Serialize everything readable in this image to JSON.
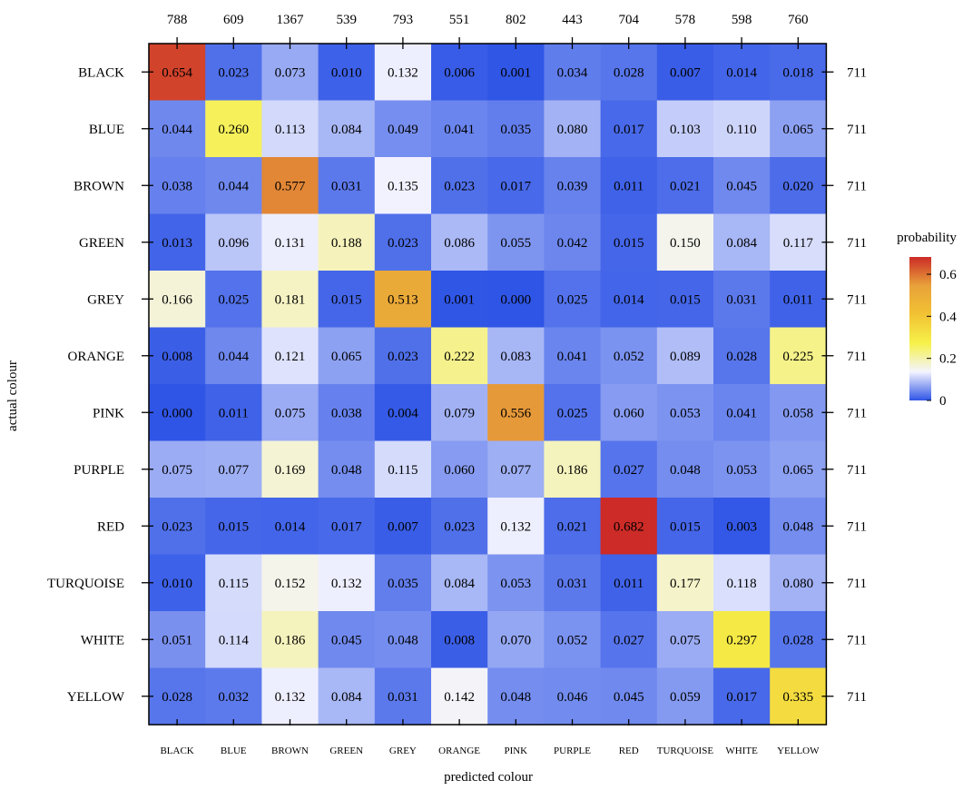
{
  "chart_data": {
    "type": "heatmap",
    "xlabel": "predicted colour",
    "ylabel": "actual colour",
    "x_categories": [
      "BLACK",
      "BLUE",
      "BROWN",
      "GREEN",
      "GREY",
      "ORANGE",
      "PINK",
      "PURPLE",
      "RED",
      "TURQUOISE",
      "WHITE",
      "YELLOW"
    ],
    "y_categories": [
      "BLACK",
      "BLUE",
      "BROWN",
      "GREEN",
      "GREY",
      "ORANGE",
      "PINK",
      "PURPLE",
      "RED",
      "TURQUOISE",
      "WHITE",
      "YELLOW"
    ],
    "column_totals": [
      "788",
      "609",
      "1367",
      "539",
      "793",
      "551",
      "802",
      "443",
      "704",
      "578",
      "598",
      "760"
    ],
    "row_totals": [
      "711",
      "711",
      "711",
      "711",
      "711",
      "711",
      "711",
      "711",
      "711",
      "711",
      "711",
      "711"
    ],
    "values": [
      [
        "0.654",
        "0.023",
        "0.073",
        "0.010",
        "0.132",
        "0.006",
        "0.001",
        "0.034",
        "0.028",
        "0.007",
        "0.014",
        "0.018"
      ],
      [
        "0.044",
        "0.260",
        "0.113",
        "0.084",
        "0.049",
        "0.041",
        "0.035",
        "0.080",
        "0.017",
        "0.103",
        "0.110",
        "0.065"
      ],
      [
        "0.038",
        "0.044",
        "0.577",
        "0.031",
        "0.135",
        "0.023",
        "0.017",
        "0.039",
        "0.011",
        "0.021",
        "0.045",
        "0.020"
      ],
      [
        "0.013",
        "0.096",
        "0.131",
        "0.188",
        "0.023",
        "0.086",
        "0.055",
        "0.042",
        "0.015",
        "0.150",
        "0.084",
        "0.117"
      ],
      [
        "0.166",
        "0.025",
        "0.181",
        "0.015",
        "0.513",
        "0.001",
        "0.000",
        "0.025",
        "0.014",
        "0.015",
        "0.031",
        "0.011"
      ],
      [
        "0.008",
        "0.044",
        "0.121",
        "0.065",
        "0.023",
        "0.222",
        "0.083",
        "0.041",
        "0.052",
        "0.089",
        "0.028",
        "0.225"
      ],
      [
        "0.000",
        "0.011",
        "0.075",
        "0.038",
        "0.004",
        "0.079",
        "0.556",
        "0.025",
        "0.060",
        "0.053",
        "0.041",
        "0.058"
      ],
      [
        "0.075",
        "0.077",
        "0.169",
        "0.048",
        "0.115",
        "0.060",
        "0.077",
        "0.186",
        "0.027",
        "0.048",
        "0.053",
        "0.065"
      ],
      [
        "0.023",
        "0.015",
        "0.014",
        "0.017",
        "0.007",
        "0.023",
        "0.132",
        "0.021",
        "0.682",
        "0.015",
        "0.003",
        "0.048"
      ],
      [
        "0.010",
        "0.115",
        "0.152",
        "0.132",
        "0.035",
        "0.084",
        "0.053",
        "0.031",
        "0.011",
        "0.177",
        "0.118",
        "0.080"
      ],
      [
        "0.051",
        "0.114",
        "0.186",
        "0.045",
        "0.048",
        "0.008",
        "0.070",
        "0.052",
        "0.027",
        "0.075",
        "0.297",
        "0.028"
      ],
      [
        "0.028",
        "0.032",
        "0.132",
        "0.084",
        "0.031",
        "0.142",
        "0.048",
        "0.046",
        "0.045",
        "0.059",
        "0.017",
        "0.335"
      ]
    ],
    "colorbar": {
      "title": "probability",
      "range": [
        0,
        0.682
      ],
      "ticks": [
        {
          "value": 0,
          "label": "0"
        },
        {
          "value": 0.2,
          "label": "0.2"
        },
        {
          "value": 0.4,
          "label": "0.4"
        },
        {
          "value": 0.6,
          "label": "0.6"
        }
      ],
      "colors": [
        "#2f55e6",
        "#f4f4ff",
        "#f6f14a",
        "#f2c233",
        "#e8a23a",
        "#cc2b27"
      ]
    }
  }
}
